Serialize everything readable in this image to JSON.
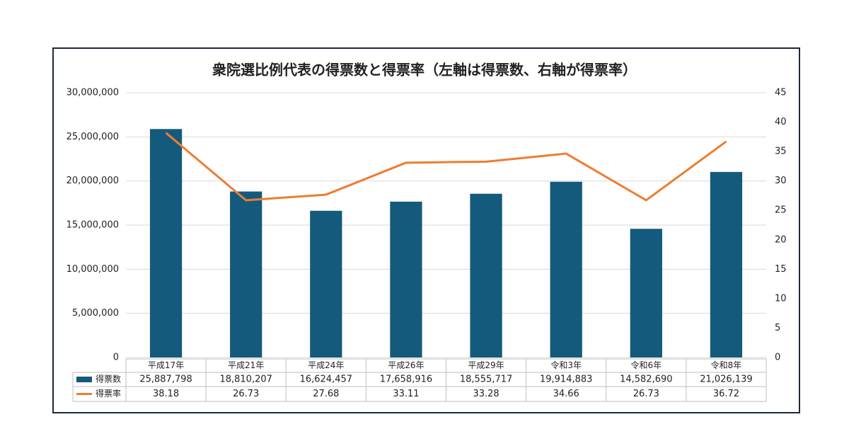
{
  "chart_data": {
    "type": "bar",
    "title": "衆院選比例代表の得票数と得票率（左軸は得票数、右軸が得票率）",
    "categories": [
      "平成17年",
      "平成21年",
      "平成24年",
      "平成26年",
      "平成29年",
      "令和3年",
      "令和6年",
      "令和8年"
    ],
    "series": [
      {
        "name": "得票数",
        "type": "bar",
        "color": "#145a7c",
        "values": [
          25887798,
          18810207,
          16624457,
          17658916,
          18555717,
          19914883,
          14582690,
          21026139
        ],
        "value_labels": [
          "25,887,798",
          "18,810,207",
          "16,624,457",
          "17,658,916",
          "18,555,717",
          "19,914,883",
          "14,582,690",
          "21,026,139"
        ]
      },
      {
        "name": "得票率",
        "type": "line",
        "axis": "y2",
        "color": "#ed7d31",
        "values": [
          38.18,
          26.73,
          27.68,
          33.11,
          33.28,
          34.66,
          26.73,
          36.72
        ]
      }
    ],
    "ylim": [
      0,
      30000000
    ],
    "yticks": [
      0,
      {
        "value": 5000000,
        "label": "5,000,000"
      },
      {
        "value": 10000000,
        "label": "10,000,000"
      },
      {
        "value": 15000000,
        "label": "15,000,000"
      },
      {
        "value": 20000000,
        "label": "20,000,000"
      },
      {
        "value": 25000000,
        "label": "25,000,000"
      },
      {
        "value": 30000000,
        "label": "30,000,000"
      }
    ],
    "y2lim": [
      0,
      45
    ],
    "y2ticks": [
      0,
      5,
      10,
      15,
      20,
      25,
      30,
      35,
      40,
      45
    ],
    "grid": true,
    "legend": "bottom"
  }
}
